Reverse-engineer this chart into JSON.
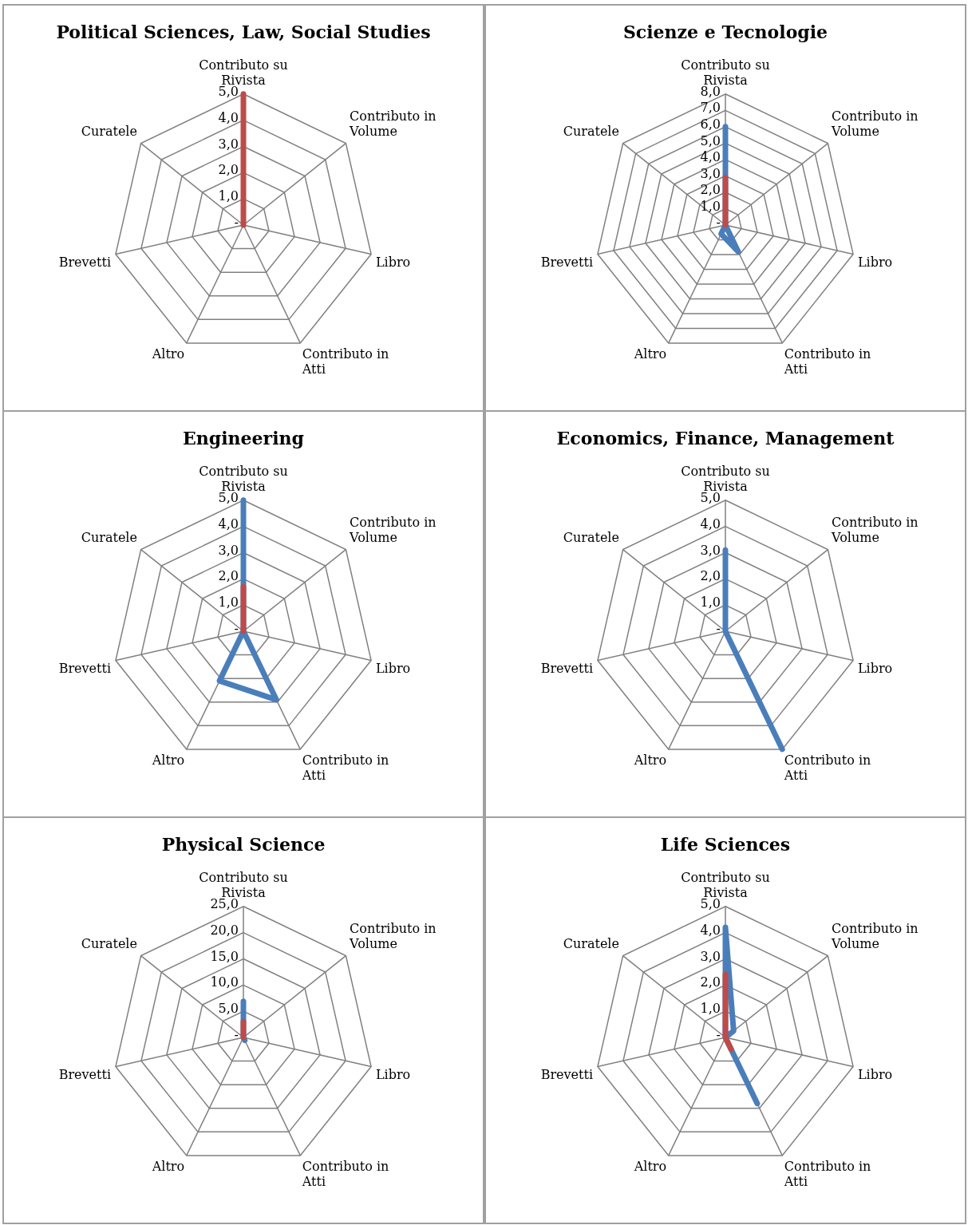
{
  "chart_data": [
    {
      "type": "radar",
      "title": "Political Sciences, Law, Social Studies",
      "categories": [
        "Contributo su Rivista",
        "Contributo in Volume",
        "Libro",
        "Contributo in Atti",
        "Altro",
        "Brevetti",
        "Curatele"
      ],
      "ylim": [
        0,
        5
      ],
      "yticks": [
        {
          "value": 0,
          "label": "-"
        },
        {
          "value": 1,
          "label": "1,0"
        },
        {
          "value": 2,
          "label": "2,0"
        },
        {
          "value": 3,
          "label": "3,0"
        },
        {
          "value": 4,
          "label": "4,0"
        },
        {
          "value": 5,
          "label": "5,0"
        }
      ],
      "grid": true,
      "marker": "none",
      "series": [
        {
          "color": "#be4b48",
          "values": [
            5.0,
            0,
            0,
            0,
            0,
            0,
            0
          ]
        }
      ]
    },
    {
      "type": "radar",
      "title": "Scienze e Tecnologie",
      "categories": [
        "Contributo su Rivista",
        "Contributo in Volume",
        "Libro",
        "Contributo in Atti",
        "Altro",
        "Brevetti",
        "Curatele"
      ],
      "ylim": [
        0,
        8
      ],
      "yticks": [
        {
          "value": 0,
          "label": "-"
        },
        {
          "value": 1,
          "label": "1,0"
        },
        {
          "value": 2,
          "label": "2,0"
        },
        {
          "value": 3,
          "label": "3,0"
        },
        {
          "value": 4,
          "label": "4,0"
        },
        {
          "value": 5,
          "label": "5,0"
        },
        {
          "value": 6,
          "label": "6,0"
        },
        {
          "value": 7,
          "label": "7,0"
        },
        {
          "value": 8,
          "label": "8,0"
        }
      ],
      "grid": true,
      "marker": "none",
      "series": [
        {
          "color": "#4a7ebb",
          "values": [
            6.0,
            0,
            0,
            1.8,
            0.6,
            0,
            0
          ]
        },
        {
          "color": "#be4b48",
          "values": [
            2.9,
            0,
            0,
            0,
            0,
            0,
            0
          ]
        }
      ]
    },
    {
      "type": "radar",
      "title": "Engineering",
      "categories": [
        "Contributo su Rivista",
        "Contributo in Volume",
        "Libro",
        "Contributo in Atti",
        "Altro",
        "Brevetti",
        "Curatele"
      ],
      "ylim": [
        0,
        5
      ],
      "yticks": [
        {
          "value": 0,
          "label": "-"
        },
        {
          "value": 1,
          "label": "1,0"
        },
        {
          "value": 2,
          "label": "2,0"
        },
        {
          "value": 3,
          "label": "3,0"
        },
        {
          "value": 4,
          "label": "4,0"
        },
        {
          "value": 5,
          "label": "5,0"
        }
      ],
      "grid": true,
      "marker": "none",
      "series": [
        {
          "color": "#4a7ebb",
          "values": [
            5.0,
            0,
            0,
            2.9,
            2.1,
            0,
            0
          ]
        },
        {
          "color": "#be4b48",
          "values": [
            1.7,
            0,
            0,
            0,
            0,
            0,
            0
          ]
        }
      ]
    },
    {
      "type": "radar",
      "title": "Economics, Finance, Management",
      "categories": [
        "Contributo su Rivista",
        "Contributo in Volume",
        "Libro",
        "Contributo in Atti",
        "Altro",
        "Brevetti",
        "Curatele"
      ],
      "ylim": [
        0,
        5
      ],
      "yticks": [
        {
          "value": 0,
          "label": "-"
        },
        {
          "value": 1,
          "label": "1,0"
        },
        {
          "value": 2,
          "label": "2,0"
        },
        {
          "value": 3,
          "label": "3,0"
        },
        {
          "value": 4,
          "label": "4,0"
        },
        {
          "value": 5,
          "label": "5,0"
        }
      ],
      "grid": true,
      "marker": "none",
      "series": [
        {
          "color": "#4a7ebb",
          "values": [
            3.1,
            0,
            0,
            5.0,
            0,
            0,
            0
          ]
        }
      ]
    },
    {
      "type": "radar",
      "title": "Physical Science",
      "categories": [
        "Contributo su Rivista",
        "Contributo in Volume",
        "Libro",
        "Contributo in Atti",
        "Altro",
        "Brevetti",
        "Curatele"
      ],
      "ylim": [
        0,
        25
      ],
      "yticks": [
        {
          "value": 0,
          "label": "-"
        },
        {
          "value": 5,
          "label": "5,0"
        },
        {
          "value": 10,
          "label": "10,0"
        },
        {
          "value": 15,
          "label": "15,0"
        },
        {
          "value": 20,
          "label": "20,0"
        },
        {
          "value": 25,
          "label": "25,0"
        }
      ],
      "grid": true,
      "marker": "none",
      "series": [
        {
          "color": "#4a7ebb",
          "values": [
            6.9,
            0,
            0,
            0.6,
            0,
            0,
            0
          ]
        },
        {
          "color": "#be4b48",
          "values": [
            3.0,
            0,
            0,
            0,
            0,
            0,
            0
          ]
        }
      ]
    },
    {
      "type": "radar",
      "title": "Life Sciences",
      "categories": [
        "Contributo su Rivista",
        "Contributo in Volume",
        "Libro",
        "Contributo in Atti",
        "Altro",
        "Brevetti",
        "Curatele"
      ],
      "ylim": [
        0,
        5
      ],
      "yticks": [
        {
          "value": 0,
          "label": "-"
        },
        {
          "value": 1,
          "label": "1,0"
        },
        {
          "value": 2,
          "label": "2,0"
        },
        {
          "value": 3,
          "label": "3,0"
        },
        {
          "value": 4,
          "label": "4,0"
        },
        {
          "value": 5,
          "label": "5,0"
        }
      ],
      "grid": true,
      "marker": "none",
      "series": [
        {
          "color": "#4a7ebb",
          "values": [
            4.2,
            0.4,
            0,
            2.8,
            0,
            0,
            0
          ]
        },
        {
          "color": "#be4b48",
          "values": [
            2.4,
            0,
            0,
            0.5,
            0,
            0,
            0
          ]
        }
      ]
    }
  ]
}
